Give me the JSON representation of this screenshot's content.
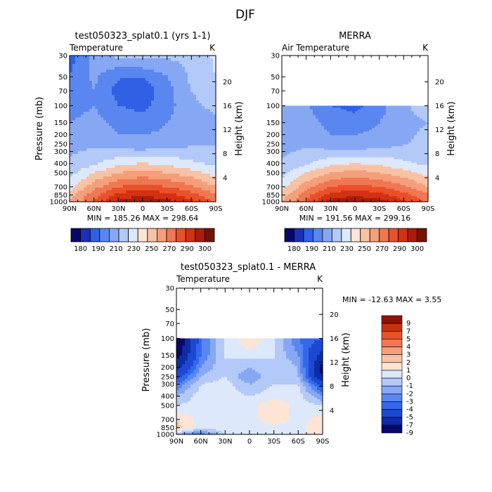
{
  "figure_title": "DJF",
  "axis_labels": {
    "pressure": "Pressure (mb)",
    "height": "Height (km)"
  },
  "pressure_ticks": [
    "30",
    "50",
    "70",
    "100",
    "150",
    "200",
    "250",
    "300",
    "400",
    "500",
    "700",
    "850",
    "1000"
  ],
  "height_ticks": [
    "20",
    "16",
    "12",
    "8",
    "4"
  ],
  "lat_ticks": [
    "90N",
    "60N",
    "30N",
    "0",
    "30S",
    "60S",
    "90S"
  ],
  "colors": {
    "abs_levels": [
      "#08086b",
      "#1c2fb8",
      "#2f60e6",
      "#5a86f0",
      "#86a8f4",
      "#b3c9f7",
      "#dde8fb",
      "#fde4d4",
      "#f8c2a4",
      "#f49e7a",
      "#ef7752",
      "#ea5029",
      "#d43112",
      "#a81d0b",
      "#741208"
    ],
    "diff_levels": [
      "#08086b",
      "#0d2ca6",
      "#1c48d3",
      "#3468ec",
      "#5a86f0",
      "#86a8f4",
      "#b3c9f7",
      "#dde8fb",
      "#fde4d4",
      "#f8c2a4",
      "#f49e7a",
      "#ef7752",
      "#e45328",
      "#c5310f",
      "#8f1207"
    ]
  },
  "panels": {
    "model": {
      "title": "test050323_splat0.1 (yrs 1-1)",
      "left_label": "Temperature",
      "unit": "K",
      "stats": "MIN = 185.26   MAX = 298.64"
    },
    "obs": {
      "title": "MERRA",
      "left_label": "Air Temperature",
      "unit": "K",
      "stats": "MIN = 191.56   MAX = 299.16"
    },
    "diff": {
      "title": "test050323_splat0.1 - MERRA",
      "left_label": "Temperature",
      "unit": "K",
      "stats": "MIN = -12.63   MAX =    3.55"
    }
  },
  "colorbar_abs_labels": [
    "180",
    "190",
    "210",
    "230",
    "250",
    "270",
    "290",
    "300"
  ],
  "colorbar_diff_labels": [
    "9",
    "7",
    "5",
    "4",
    "3",
    "2",
    "1",
    "0",
    "-1",
    "-2",
    "-3",
    "-4",
    "-5",
    "-7",
    "-9"
  ],
  "chart_data": [
    {
      "type": "heatmap",
      "title": "test050323_splat0.1 (yrs 1-1)",
      "variable": "Temperature",
      "units": "K",
      "x": [
        "90N",
        "60N",
        "30N",
        "0",
        "30S",
        "60S",
        "90S"
      ],
      "y_pressure_mb": [
        30,
        50,
        70,
        100,
        150,
        200,
        250,
        300,
        400,
        500,
        700,
        850,
        1000
      ],
      "ylabel": "Pressure (mb)",
      "ylabel_right": "Height (km)",
      "min": 185.26,
      "max": 298.64,
      "contour_levels": [
        180,
        190,
        200,
        210,
        220,
        230,
        240,
        250,
        260,
        270,
        280,
        290,
        300
      ],
      "values": [
        [
          195,
          215,
          222,
          224,
          222,
          222,
          232
        ],
        [
          200,
          212,
          201,
          200,
          210,
          222,
          230
        ],
        [
          205,
          210,
          196,
          194,
          206,
          220,
          225
        ],
        [
          205,
          210,
          200,
          197,
          206,
          218,
          222
        ],
        [
          210,
          214,
          207,
          204,
          210,
          217,
          218
        ],
        [
          212,
          216,
          210,
          210,
          212,
          217,
          218
        ],
        [
          215,
          218,
          215,
          213,
          215,
          218,
          220
        ],
        [
          218,
          222,
          222,
          222,
          224,
          224,
          222
        ],
        [
          222,
          228,
          238,
          240,
          238,
          232,
          228
        ],
        [
          226,
          240,
          250,
          254,
          250,
          244,
          236
        ],
        [
          236,
          256,
          270,
          274,
          270,
          262,
          250
        ],
        [
          246,
          266,
          284,
          288,
          284,
          274,
          262
        ],
        [
          250,
          270,
          294,
          298,
          294,
          282,
          268
        ]
      ]
    },
    {
      "type": "heatmap",
      "title": "MERRA",
      "variable": "Air Temperature",
      "units": "K",
      "x": [
        "90N",
        "60N",
        "30N",
        "0",
        "30S",
        "60S",
        "90S"
      ],
      "y_pressure_mb": [
        100,
        150,
        200,
        250,
        300,
        400,
        500,
        700,
        850,
        1000
      ],
      "ylabel": "Pressure (mb)",
      "ylabel_right": "Height (km)",
      "min": 191.56,
      "max": 299.16,
      "contour_levels": [
        180,
        190,
        200,
        210,
        220,
        230,
        240,
        250,
        260,
        270,
        280,
        290,
        300
      ],
      "values": [
        [
          210,
          212,
          200,
          197,
          206,
          218,
          226
        ],
        [
          212,
          214,
          207,
          204,
          210,
          217,
          220
        ],
        [
          214,
          216,
          210,
          210,
          212,
          218,
          222
        ],
        [
          216,
          218,
          215,
          213,
          215,
          219,
          224
        ],
        [
          218,
          222,
          222,
          222,
          224,
          224,
          224
        ],
        [
          222,
          228,
          238,
          240,
          238,
          232,
          228
        ],
        [
          226,
          240,
          250,
          254,
          250,
          244,
          236
        ],
        [
          236,
          256,
          270,
          274,
          270,
          262,
          250
        ],
        [
          246,
          266,
          284,
          288,
          284,
          274,
          262
        ],
        [
          250,
          270,
          294,
          298,
          294,
          282,
          268
        ]
      ]
    },
    {
      "type": "heatmap",
      "title": "test050323_splat0.1 - MERRA",
      "variable": "Temperature",
      "units": "K",
      "x": [
        "90N",
        "60N",
        "30N",
        "0",
        "30S",
        "60S",
        "90S"
      ],
      "y_pressure_mb": [
        100,
        150,
        200,
        250,
        300,
        400,
        500,
        700,
        850,
        1000
      ],
      "ylabel": "Pressure (mb)",
      "ylabel_right": "Height (km)",
      "min": -12.63,
      "max": 3.55,
      "contour_levels": [
        -9,
        -7,
        -5,
        -4,
        -3,
        -2,
        -1,
        0,
        1,
        2,
        3,
        4,
        5,
        7,
        9
      ],
      "values": [
        [
          -12,
          -4,
          -1,
          1,
          -1,
          -4,
          -5
        ],
        [
          -10,
          -4,
          -1,
          -0.5,
          -1,
          -3,
          -8
        ],
        [
          -8,
          -3,
          -1,
          -2,
          -1,
          -2,
          -10
        ],
        [
          -6,
          -2,
          -1,
          -3,
          -1,
          -2,
          -9
        ],
        [
          -4,
          -1,
          -0.5,
          -2,
          -1,
          -1,
          -6
        ],
        [
          -2,
          -0.5,
          -0.5,
          -1,
          -0.5,
          -0.5,
          -3
        ],
        [
          -1,
          -0.5,
          -0.5,
          -0.5,
          1,
          -0.5,
          -1
        ],
        [
          1,
          -0.5,
          -0.5,
          -0.5,
          1,
          -0.5,
          0.5
        ],
        [
          1.5,
          -0.5,
          -0.5,
          -1,
          -0.5,
          -0.5,
          1
        ],
        [
          -2,
          -4,
          -1,
          -1,
          -1,
          -0.5,
          1
        ]
      ]
    }
  ]
}
